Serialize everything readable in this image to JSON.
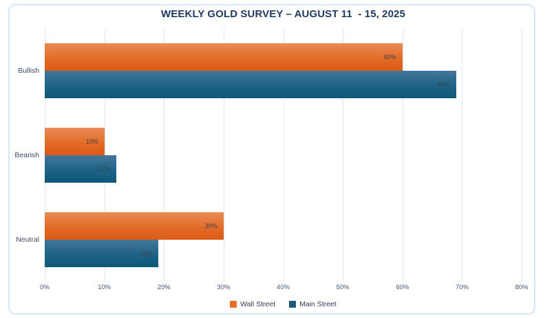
{
  "chart_data": {
    "type": "bar",
    "orientation": "horizontal",
    "title": "WEEKLY GOLD SURVEY – AUGUST 11  - 15, 2025",
    "categories": [
      "Bullish",
      "Bearish",
      "Neutral"
    ],
    "series": [
      {
        "name": "Wall Street",
        "values": [
          60,
          10,
          30
        ],
        "labels": [
          "60%",
          "10%",
          "30%"
        ],
        "gradient_top": "#E98A55",
        "gradient_mid": "#E26C28",
        "gradient_bottom": "#DB5A16",
        "legend_color": "#E7702C"
      },
      {
        "name": "Main Street",
        "values": [
          69,
          12,
          19
        ],
        "labels": [
          "69%",
          "12%",
          "19%"
        ],
        "gradient_top": "#45789C",
        "gradient_mid": "#1D6286",
        "gradient_bottom": "#0C5878",
        "legend_color": "#1E5A78"
      }
    ],
    "xlim": [
      0,
      80
    ],
    "x_ticks": [
      {
        "value": 0,
        "label": "0%"
      },
      {
        "value": 10,
        "label": "10%"
      },
      {
        "value": 20,
        "label": "20%"
      },
      {
        "value": 30,
        "label": "30%"
      },
      {
        "value": 40,
        "label": "40%"
      },
      {
        "value": 50,
        "label": "50%"
      },
      {
        "value": 60,
        "label": "60%"
      },
      {
        "value": 70,
        "label": "70%"
      },
      {
        "value": 80,
        "label": "80%"
      }
    ],
    "grid": true,
    "legend_position": "bottom"
  },
  "colors": {
    "title_text": "#1F3A5C",
    "axis_text": "#44546A",
    "category_text": "#3E4C61",
    "data_label_text": "#3A434E",
    "gridline": "#DCE9F7",
    "frame_border": "#D8E6F5",
    "background": "#FFFFFF"
  }
}
